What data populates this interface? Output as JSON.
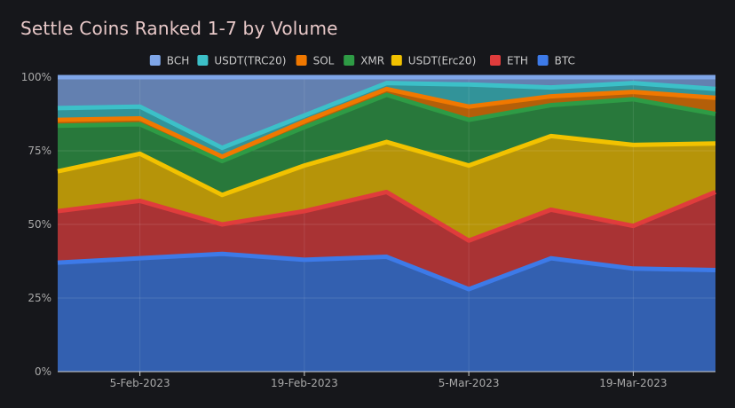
{
  "chart_data": {
    "type": "area",
    "stacked": true,
    "normalized": true,
    "title": "Settle Coins Ranked 1-7 by Volume",
    "xlabel": "",
    "ylabel": "",
    "ylim": [
      0,
      1
    ],
    "y_tick_labels": [
      "0%",
      "25%",
      "50%",
      "75%",
      "100%"
    ],
    "y_ticks": [
      0,
      0.25,
      0.5,
      0.75,
      1.0
    ],
    "x_tick_labels": [
      "5-Feb-2023",
      "19-Feb-2023",
      "5-Mar-2023",
      "19-Mar-2023"
    ],
    "x_tick_indices": [
      1,
      3,
      5,
      7
    ],
    "x": [
      "29-Jan-2023",
      "5-Feb-2023",
      "12-Feb-2023",
      "19-Feb-2023",
      "26-Feb-2023",
      "5-Mar-2023",
      "12-Mar-2023",
      "19-Mar-2023",
      "26-Mar-2023"
    ],
    "legend_position": "top-center",
    "grid": true,
    "series": [
      {
        "name": "BTC",
        "color": "#3d7ae8",
        "values": [
          0.37,
          0.385,
          0.4,
          0.38,
          0.39,
          0.28,
          0.385,
          0.35,
          0.345
        ]
      },
      {
        "name": "ETH",
        "color": "#e03c3c",
        "values": [
          0.175,
          0.195,
          0.1,
          0.165,
          0.22,
          0.165,
          0.165,
          0.145,
          0.265
        ]
      },
      {
        "name": "USDT(Erc20)",
        "color": "#f2c200",
        "values": [
          0.135,
          0.16,
          0.1,
          0.155,
          0.17,
          0.255,
          0.25,
          0.275,
          0.165
        ]
      },
      {
        "name": "XMR",
        "color": "#2e9b45",
        "values": [
          0.155,
          0.1,
          0.115,
          0.13,
          0.16,
          0.155,
          0.105,
          0.155,
          0.1
        ]
      },
      {
        "name": "SOL",
        "color": "#f07800",
        "values": [
          0.02,
          0.02,
          0.015,
          0.02,
          0.02,
          0.045,
          0.03,
          0.025,
          0.055
        ]
      },
      {
        "name": "USDT(TRC20)",
        "color": "#3cc0c8",
        "values": [
          0.04,
          0.04,
          0.03,
          0.02,
          0.02,
          0.075,
          0.03,
          0.03,
          0.03
        ]
      },
      {
        "name": "BCH",
        "color": "#7fa6e8",
        "values": [
          0.105,
          0.1,
          0.24,
          0.13,
          0.02,
          0.025,
          0.035,
          0.02,
          0.04
        ]
      }
    ],
    "legend_order": [
      "BCH",
      "USDT(TRC20)",
      "SOL",
      "XMR",
      "USDT(Erc20)",
      "ETH",
      "BTC"
    ]
  }
}
